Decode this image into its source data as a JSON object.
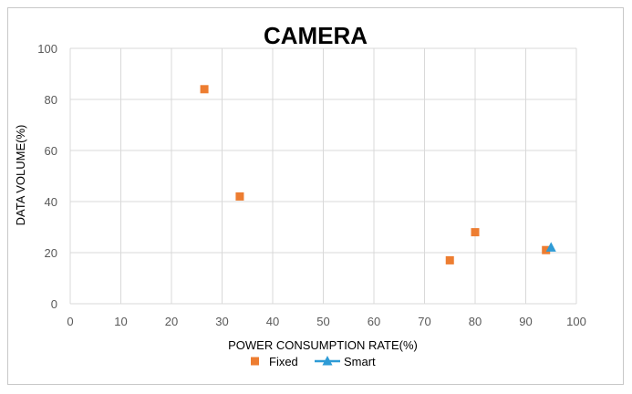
{
  "chart_data": {
    "type": "scatter",
    "title": "CAMERA",
    "xlabel": "POWER CONSUMPTION RATE(%)",
    "ylabel": "DATA VOLUME(%)",
    "xlim": [
      0,
      100
    ],
    "ylim": [
      0,
      100
    ],
    "xticks": [
      0,
      10,
      20,
      30,
      40,
      50,
      60,
      70,
      80,
      90,
      100
    ],
    "yticks": [
      0,
      20,
      40,
      60,
      80,
      100
    ],
    "grid": true,
    "legend_position": "bottom",
    "series": [
      {
        "name": "Fixed",
        "marker": "square",
        "color": "#ED7D31",
        "points": [
          {
            "x": 26.5,
            "y": 84
          },
          {
            "x": 33.5,
            "y": 42
          },
          {
            "x": 75,
            "y": 17
          },
          {
            "x": 80,
            "y": 28
          },
          {
            "x": 94,
            "y": 21
          }
        ]
      },
      {
        "name": "Smart",
        "marker": "triangle",
        "color": "#2E9BD6",
        "points": [
          {
            "x": 95,
            "y": 22
          }
        ]
      }
    ]
  }
}
